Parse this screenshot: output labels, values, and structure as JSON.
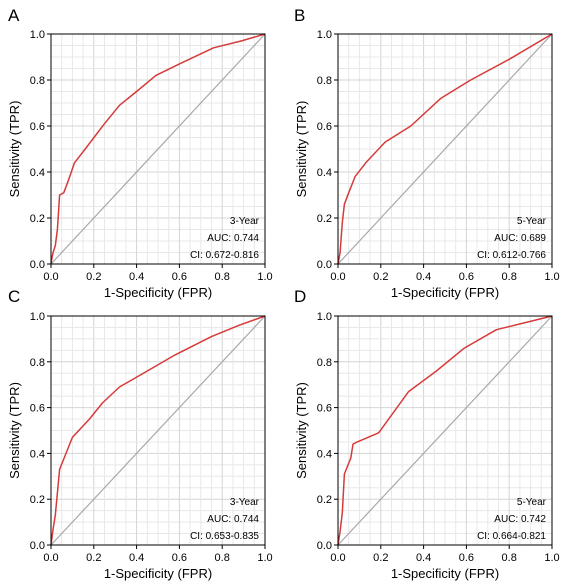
{
  "chart_data": [
    {
      "type": "line",
      "panel_label": "A",
      "xlabel": "1-Specificity (FPR)",
      "ylabel": "Sensitivity (TPR)",
      "xlim": [
        0,
        1
      ],
      "ylim": [
        0,
        1
      ],
      "xticks": [
        "0.0",
        "0.2",
        "0.4",
        "0.6",
        "0.8",
        "1.0"
      ],
      "yticks": [
        "0.0",
        "0.2",
        "0.4",
        "0.6",
        "0.8",
        "1.0"
      ],
      "grid": true,
      "diagonal_reference": true,
      "series": [
        {
          "x": [
            0.0,
            0.005,
            0.01,
            0.02,
            0.03,
            0.04,
            0.06,
            0.08,
            0.11,
            0.16,
            0.25,
            0.32,
            0.4,
            0.49,
            0.6,
            0.76,
            0.89,
            1.0
          ],
          "y": [
            0.0,
            0.03,
            0.05,
            0.08,
            0.15,
            0.3,
            0.31,
            0.36,
            0.44,
            0.5,
            0.61,
            0.69,
            0.75,
            0.82,
            0.87,
            0.94,
            0.97,
            1.0
          ],
          "color": "#d63a3a"
        }
      ],
      "annotation": [
        "3-Year",
        "AUC: 0.744",
        "CI: 0.672-0.816"
      ]
    },
    {
      "type": "line",
      "panel_label": "B",
      "xlabel": "1-Specificity (FPR)",
      "ylabel": "Sensitivity (TPR)",
      "xlim": [
        0,
        1
      ],
      "ylim": [
        0,
        1
      ],
      "xticks": [
        "0.0",
        "0.2",
        "0.4",
        "0.6",
        "0.8",
        "1.0"
      ],
      "yticks": [
        "0.0",
        "0.2",
        "0.4",
        "0.6",
        "0.8",
        "1.0"
      ],
      "grid": true,
      "diagonal_reference": true,
      "series": [
        {
          "x": [
            0.0,
            0.01,
            0.02,
            0.03,
            0.05,
            0.08,
            0.13,
            0.22,
            0.34,
            0.48,
            0.62,
            0.8,
            1.0
          ],
          "y": [
            0.0,
            0.05,
            0.18,
            0.26,
            0.31,
            0.38,
            0.44,
            0.53,
            0.6,
            0.72,
            0.8,
            0.89,
            1.0
          ],
          "color": "#d63a3a"
        }
      ],
      "annotation": [
        "5-Year",
        "AUC: 0.689",
        "CI: 0.612-0.766"
      ]
    },
    {
      "type": "line",
      "panel_label": "C",
      "xlabel": "1-Specificity (FPR)",
      "ylabel": "Sensitivity (TPR)",
      "xlim": [
        0,
        1
      ],
      "ylim": [
        0,
        1
      ],
      "xticks": [
        "0.0",
        "0.2",
        "0.4",
        "0.6",
        "0.8",
        "1.0"
      ],
      "yticks": [
        "0.0",
        "0.2",
        "0.4",
        "0.6",
        "0.8",
        "1.0"
      ],
      "grid": true,
      "diagonal_reference": true,
      "series": [
        {
          "x": [
            0.0,
            0.01,
            0.02,
            0.04,
            0.07,
            0.1,
            0.18,
            0.24,
            0.32,
            0.45,
            0.58,
            0.75,
            0.88,
            1.0
          ],
          "y": [
            0.0,
            0.07,
            0.13,
            0.33,
            0.4,
            0.47,
            0.55,
            0.62,
            0.69,
            0.76,
            0.83,
            0.91,
            0.96,
            1.0
          ],
          "color": "#d63a3a"
        }
      ],
      "annotation": [
        "3-Year",
        "AUC: 0.744",
        "CI: 0.653-0.835"
      ]
    },
    {
      "type": "line",
      "panel_label": "D",
      "xlabel": "1-Specificity (FPR)",
      "ylabel": "Sensitivity (TPR)",
      "xlim": [
        0,
        1
      ],
      "ylim": [
        0,
        1
      ],
      "xticks": [
        "0.0",
        "0.2",
        "0.4",
        "0.6",
        "0.8",
        "1.0"
      ],
      "yticks": [
        "0.0",
        "0.2",
        "0.4",
        "0.6",
        "0.8",
        "1.0"
      ],
      "grid": true,
      "diagonal_reference": true,
      "series": [
        {
          "x": [
            0.0,
            0.01,
            0.02,
            0.03,
            0.06,
            0.07,
            0.09,
            0.19,
            0.33,
            0.46,
            0.59,
            0.74,
            0.87,
            1.0
          ],
          "y": [
            0.0,
            0.06,
            0.14,
            0.31,
            0.38,
            0.44,
            0.45,
            0.49,
            0.67,
            0.76,
            0.86,
            0.94,
            0.97,
            1.0
          ],
          "color": "#d63a3a"
        }
      ],
      "annotation": [
        "5-Year",
        "AUC: 0.742",
        "CI: 0.664-0.821"
      ]
    }
  ]
}
